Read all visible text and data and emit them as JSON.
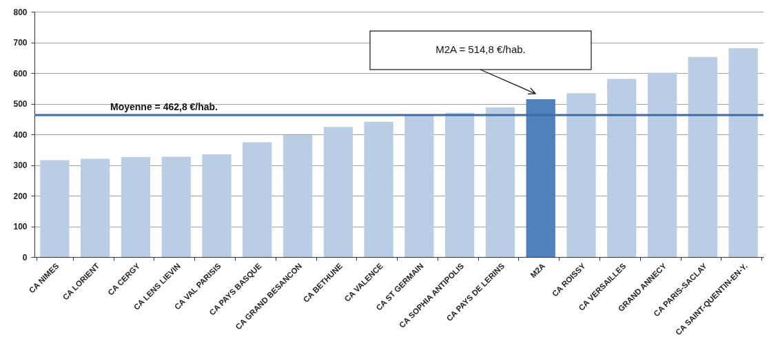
{
  "chart_data": {
    "type": "bar",
    "categories": [
      "CA NIMES",
      "CA LORIENT",
      "CA CERGY",
      "CA LENS LIEVIN",
      "CA VAL PARISIS",
      "CA PAYS BASQUE",
      "CA GRAND BESANCON",
      "CA BETHUNE",
      "CA VALENCE",
      "CA ST GERMAIN",
      "CA SOPHIA ANTIPOLIS",
      "CA PAYS DE LERINS",
      "M2A",
      "CA ROISSY",
      "CA VERSAILLES",
      "GRAND ANNECY",
      "CA PARIS-SACLAY",
      "CA SAINT-QUENTIN-EN-Y."
    ],
    "values": [
      316,
      320,
      326,
      327,
      335,
      374,
      398,
      424,
      441,
      466,
      470,
      488,
      514.8,
      534,
      581,
      601,
      652,
      681
    ],
    "colors": [
      "#b9cde5",
      "#b9cde5",
      "#b9cde5",
      "#b9cde5",
      "#b9cde5",
      "#b9cde5",
      "#b9cde5",
      "#b9cde5",
      "#b9cde5",
      "#b9cde5",
      "#b9cde5",
      "#b9cde5",
      "#4f81bd",
      "#b9cde5",
      "#b9cde5",
      "#b9cde5",
      "#b9cde5",
      "#b9cde5"
    ],
    "ylim": [
      0,
      800
    ],
    "yticks": [
      0,
      100,
      200,
      300,
      400,
      500,
      600,
      700,
      800
    ],
    "grid": "y",
    "ref_lines": [
      {
        "axis": "y",
        "value": 462.8,
        "label": "Moyenne = 462,8 €/hab.",
        "color": "#3d6aa8"
      }
    ],
    "annotations": [
      "M2A = 514,8 €/hab."
    ]
  }
}
